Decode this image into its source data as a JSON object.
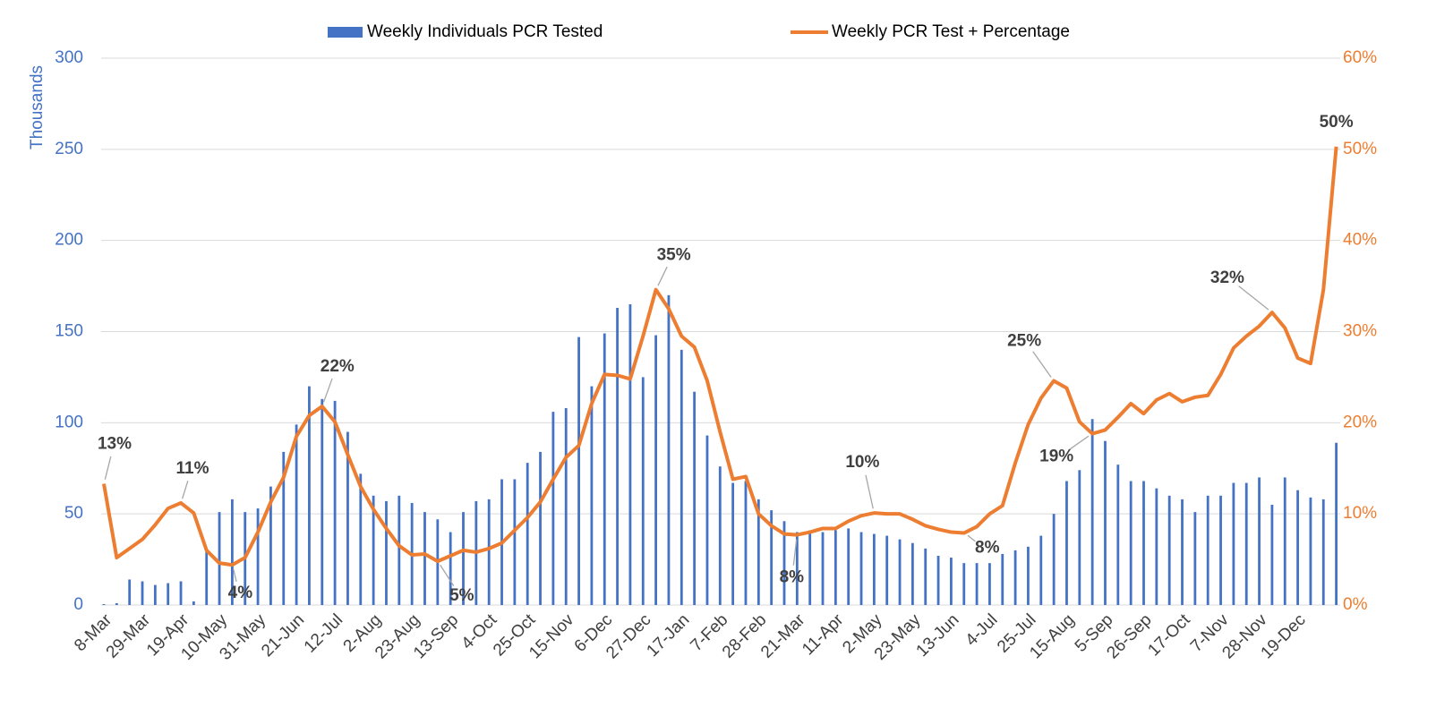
{
  "chart_data": {
    "type": "combo",
    "y_label": "Thousands",
    "categories": [
      "8-Mar",
      null,
      null,
      "29-Mar",
      null,
      null,
      "19-Apr",
      null,
      null,
      "10-May",
      null,
      null,
      "31-May",
      null,
      null,
      "21-Jun",
      null,
      null,
      "12-Jul",
      null,
      null,
      "2-Aug",
      null,
      null,
      "23-Aug",
      null,
      null,
      "13-Sep",
      null,
      null,
      "4-Oct",
      null,
      null,
      "25-Oct",
      null,
      null,
      "15-Nov",
      null,
      null,
      "6-Dec",
      null,
      null,
      "27-Dec",
      null,
      null,
      "17-Jan",
      null,
      null,
      "7-Feb",
      null,
      null,
      "28-Feb",
      null,
      null,
      "21-Mar",
      null,
      null,
      "11-Apr",
      null,
      null,
      "2-May",
      null,
      null,
      "23-May",
      null,
      null,
      "13-Jun",
      null,
      null,
      "4-Jul",
      null,
      null,
      "25-Jul",
      null,
      null,
      "15-Aug",
      null,
      null,
      "5-Sep",
      null,
      null,
      "26-Sep",
      null,
      null,
      "17-Oct",
      null,
      null,
      "7-Nov",
      null,
      null,
      "28-Nov",
      null,
      null,
      "19-Dec",
      null,
      null,
      null
    ],
    "series": [
      {
        "name": "Weekly Individuals PCR Tested",
        "type": "bar",
        "color": "#4472c4",
        "values": [
          0.5,
          1,
          14,
          13,
          11,
          12,
          13,
          2,
          30,
          51,
          58,
          51,
          53,
          65,
          84,
          99,
          120,
          113,
          112,
          95,
          72,
          60,
          57,
          60,
          56,
          51,
          47,
          40,
          51,
          57,
          58,
          69,
          69,
          78,
          84,
          106,
          108,
          147,
          120,
          149,
          163,
          165,
          125,
          148,
          170,
          140,
          117,
          93,
          76,
          67,
          68,
          58,
          52,
          46,
          40,
          41,
          40,
          41,
          42,
          40,
          39,
          38,
          36,
          34,
          31,
          27,
          26,
          23,
          23,
          23,
          28,
          30,
          32,
          38,
          50,
          68,
          74,
          102,
          90,
          77,
          68,
          68,
          64,
          60,
          58,
          51,
          60,
          60,
          67,
          67,
          70,
          55,
          70,
          63,
          59,
          58,
          89
        ]
      },
      {
        "name": "Weekly PCR Test + Percentage",
        "type": "line",
        "axis": "y2",
        "color": "#ed7d31",
        "values": [
          13.3,
          5.2,
          6.2,
          7.2,
          8.8,
          10.6,
          11.2,
          10.1,
          6,
          4.6,
          4.4,
          5.2,
          8,
          11.3,
          14,
          18.5,
          20.8,
          21.8,
          20.1,
          16.5,
          13,
          10.5,
          8.4,
          6.5,
          5.5,
          5.6,
          4.8,
          5.4,
          6,
          5.8,
          6.2,
          6.8,
          8.2,
          9.6,
          11.3,
          13.8,
          16.2,
          17.5,
          22.1,
          25.3,
          25.2,
          24.8,
          29.5,
          34.6,
          32.5,
          29.5,
          28.3,
          24.6,
          19,
          13.8,
          14.1,
          10,
          8.7,
          7.8,
          7.7,
          8,
          8.4,
          8.4,
          9.2,
          9.8,
          10.1,
          10,
          10,
          9.4,
          8.7,
          8.3,
          8,
          7.9,
          8.6,
          10,
          10.9,
          15.6,
          19.8,
          22.7,
          24.6,
          23.8,
          20.1,
          18.8,
          19.2,
          20.6,
          22.1,
          21,
          22.5,
          23.2,
          22.3,
          22.8,
          23,
          25.3,
          28.2,
          29.5,
          30.6,
          32.1,
          30.4,
          27.1,
          26.5,
          34.6,
          50.3
        ],
        "value_labels": [
          "13%",
          null,
          null,
          null,
          null,
          null,
          "11%",
          null,
          null,
          null,
          "4%",
          null,
          null,
          null,
          null,
          null,
          null,
          "22%",
          null,
          null,
          null,
          null,
          null,
          null,
          null,
          null,
          "5%",
          null,
          null,
          null,
          null,
          null,
          null,
          null,
          null,
          null,
          null,
          null,
          null,
          null,
          null,
          null,
          null,
          "35%",
          null,
          null,
          null,
          null,
          null,
          null,
          null,
          null,
          null,
          null,
          "8%",
          null,
          null,
          null,
          null,
          null,
          "10%",
          null,
          null,
          null,
          null,
          null,
          null,
          "8%",
          null,
          null,
          null,
          null,
          null,
          null,
          "25%",
          null,
          null,
          "19%",
          null,
          null,
          null,
          null,
          null,
          null,
          null,
          null,
          null,
          null,
          null,
          null,
          null,
          "32%",
          null,
          null,
          null,
          null,
          "50%"
        ]
      }
    ],
    "ylim": [
      0,
      300
    ],
    "yticks": [
      0,
      50,
      100,
      150,
      200,
      250,
      300
    ],
    "y2lim": [
      0,
      60
    ],
    "y2ticks": [
      {
        "value": 0,
        "label": "0%"
      },
      {
        "value": 10,
        "label": "10%"
      },
      {
        "value": 20,
        "label": "20%"
      },
      {
        "value": 30,
        "label": "30%"
      },
      {
        "value": 40,
        "label": "40%"
      },
      {
        "value": 50,
        "label": "50%"
      },
      {
        "value": 60,
        "label": "60%"
      }
    ],
    "grid": true,
    "legend": "top"
  }
}
